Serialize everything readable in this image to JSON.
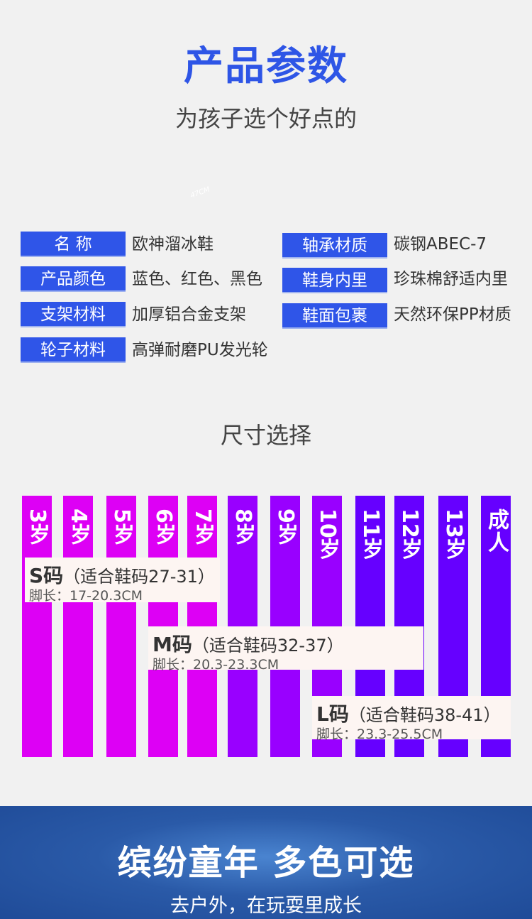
{
  "header": {
    "title": "产品参数",
    "subtitle": "为孩子选个好点的",
    "watermark": "47CM"
  },
  "params": [
    {
      "label": "名  称",
      "value": "欧神溜冰鞋"
    },
    {
      "label": "产品颜色",
      "value": "蓝色、红色、黑色"
    },
    {
      "label": "支架材料",
      "value": "加厚铝合金支架"
    },
    {
      "label": "轮子材料",
      "value": "高弹耐磨PU发光轮"
    },
    {
      "label": "轴承材质",
      "value": "碳钢ABEC-7"
    },
    {
      "label": "鞋身内里",
      "value": "珍珠棉舒适内里"
    },
    {
      "label": "鞋面包裹",
      "value": "天然环保PP材质"
    }
  ],
  "size": {
    "title": "尺寸选择",
    "ages": [
      "3岁",
      "4岁",
      "5岁",
      "6岁",
      "7岁",
      "8岁",
      "9岁",
      "10岁",
      "11岁",
      "12岁",
      "13岁",
      "成人"
    ],
    "colors": {
      "s": "#dd00f5",
      "m": "#9900ff",
      "l": "#6600ff",
      "box": "#fdf5f2"
    },
    "boxes": [
      {
        "code": "S码",
        "fit": "（适合鞋码27-31）",
        "foot": "脚长：17-20.3CM"
      },
      {
        "code": "M码",
        "fit": "（适合鞋码32-37）",
        "foot": "脚长：20.3-23.3CM"
      },
      {
        "code": "L码",
        "fit": "（适合鞋码38-41）",
        "foot": "脚长：23.3-25.5CM"
      }
    ]
  },
  "banner": {
    "title": "缤纷童年  多色可选",
    "subtitle": "去户外，在玩耍里成长"
  }
}
